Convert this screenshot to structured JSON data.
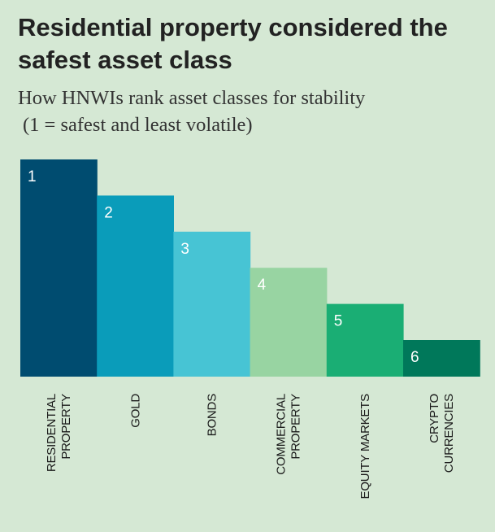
{
  "title": "Residential property considered the safest asset class",
  "subtitle_line1": "How HNWIs rank asset classes for stability",
  "subtitle_line2": "(1 = safest and least volatile)",
  "chart_data": {
    "type": "bar",
    "title": "Residential property considered the safest asset class",
    "subtitle": "How HNWIs rank asset classes for stability (1 = safest and least volatile)",
    "categories": [
      [
        "RESIDENTIAL",
        "PROPERTY"
      ],
      [
        "GOLD"
      ],
      [
        "BONDS"
      ],
      [
        "COMMERCIAL",
        "PROPERTY"
      ],
      [
        "EQUITY MARKETS"
      ],
      [
        "CRYPTO",
        "CURRENCIES"
      ]
    ],
    "values": [
      1,
      2,
      3,
      4,
      5,
      6
    ],
    "labels": [
      "1",
      "2",
      "3",
      "4",
      "5",
      "6"
    ],
    "colors": [
      "#004c70",
      "#0a9cba",
      "#47c4d4",
      "#98d4a2",
      "#1aae74",
      "#00785a"
    ],
    "bar_order": "descending-height-by-rank",
    "grid": false,
    "legend": "none",
    "xlabel": "",
    "ylabel": ""
  }
}
